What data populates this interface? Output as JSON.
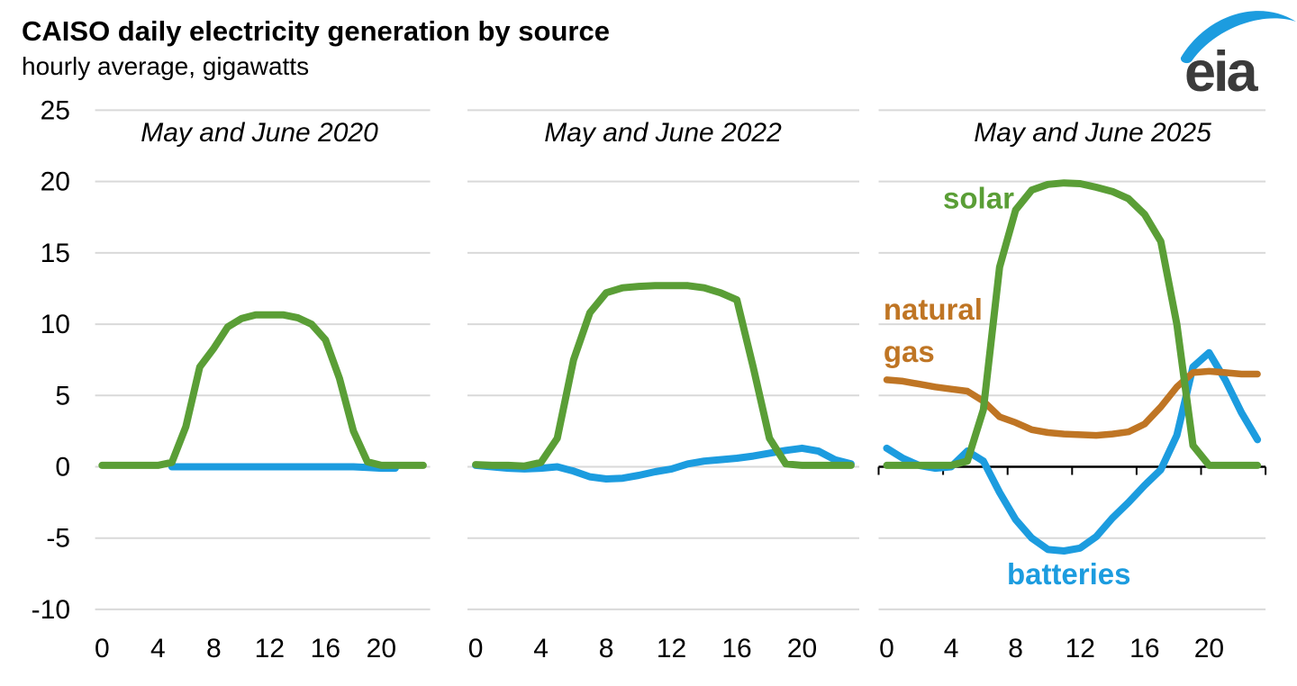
{
  "header": {
    "title": "CAISO daily electricity generation by source",
    "subtitle": "hourly average, gigawatts"
  },
  "logo": {
    "text": "eia"
  },
  "chart_data": {
    "type": "line",
    "title": "CAISO daily electricity generation by source",
    "subtitle": "hourly average, gigawatts",
    "unit": "gigawatts",
    "x_hours_range": [
      0,
      23
    ],
    "x_tick_hours": [
      0,
      4,
      8,
      12,
      16,
      20
    ],
    "y_ticks": [
      25,
      20,
      15,
      10,
      5,
      0,
      -5,
      -10
    ],
    "ylim": [
      -10,
      25
    ],
    "grid": true,
    "legend_position": "inline-labels-third-panel",
    "colors": {
      "solar": "#5a9e36",
      "batteries": "#1c9cdf",
      "natural_gas": "#bf7524",
      "grid": "#d9d9d9",
      "axis": "#000000",
      "text": "#000000",
      "logo_text": "#3b3b3b",
      "logo_swoosh": "#1c9cdf"
    },
    "panels": [
      {
        "label": "May and June 2020",
        "zero_axis": false,
        "series": [
          {
            "name": "batteries",
            "values": [
              null,
              null,
              null,
              null,
              null,
              0,
              0,
              0,
              0,
              0,
              0,
              0,
              0,
              0,
              0,
              0,
              0,
              0,
              0,
              -0.05,
              -0.1,
              -0.1,
              null,
              null
            ]
          },
          {
            "name": "solar",
            "values": [
              0.1,
              0.1,
              0.1,
              0.1,
              0.1,
              0.3,
              2.8,
              7.0,
              8.3,
              9.8,
              10.4,
              10.65,
              10.65,
              10.65,
              10.45,
              10.0,
              8.9,
              6.2,
              2.5,
              0.35,
              0.1,
              0.1,
              0.1,
              0.1
            ]
          }
        ],
        "annotations": []
      },
      {
        "label": "May and June 2022",
        "zero_axis": false,
        "series": [
          {
            "name": "batteries",
            "values": [
              0.1,
              0.0,
              -0.1,
              -0.15,
              -0.1,
              0.0,
              -0.3,
              -0.7,
              -0.85,
              -0.8,
              -0.6,
              -0.35,
              -0.15,
              0.2,
              0.4,
              0.5,
              0.6,
              0.75,
              0.95,
              1.15,
              1.3,
              1.1,
              0.5,
              0.2
            ]
          },
          {
            "name": "solar",
            "values": [
              0.15,
              0.1,
              0.1,
              0.05,
              0.3,
              2.0,
              7.5,
              10.8,
              12.2,
              12.55,
              12.65,
              12.7,
              12.7,
              12.7,
              12.55,
              12.2,
              11.7,
              7.0,
              2.0,
              0.2,
              0.1,
              0.1,
              0.1,
              0.1
            ]
          }
        ],
        "annotations": []
      },
      {
        "label": "May and June 2025",
        "zero_axis": true,
        "series": [
          {
            "name": "batteries",
            "values": [
              1.3,
              0.6,
              0.1,
              -0.1,
              0.0,
              1.1,
              0.4,
              -1.8,
              -3.7,
              -5.0,
              -5.8,
              -5.9,
              -5.7,
              -4.9,
              -3.6,
              -2.5,
              -1.3,
              -0.2,
              2.2,
              7.0,
              8.0,
              6.1,
              3.8,
              1.9
            ]
          },
          {
            "name": "natural_gas",
            "values": [
              6.1,
              6.0,
              5.8,
              5.6,
              5.45,
              5.3,
              4.6,
              3.5,
              3.1,
              2.6,
              2.4,
              2.3,
              2.25,
              2.2,
              2.3,
              2.45,
              3.0,
              4.2,
              5.6,
              6.6,
              6.7,
              6.6,
              6.5,
              6.5
            ]
          },
          {
            "name": "solar",
            "values": [
              0.1,
              0.1,
              0.1,
              0.1,
              0.1,
              0.4,
              4.0,
              14.0,
              18.0,
              19.4,
              19.8,
              19.9,
              19.85,
              19.6,
              19.3,
              18.8,
              17.7,
              15.8,
              10.0,
              1.5,
              0.1,
              0.1,
              0.1,
              0.1
            ]
          }
        ],
        "annotations": [
          {
            "text": "solar",
            "series": "solar",
            "h": 5.7,
            "v": 18.8,
            "align": "middle"
          },
          {
            "lines": [
              "natural",
              "gas"
            ],
            "series": "natural_gas",
            "h": -0.2,
            "v": 11.0,
            "align": "start",
            "line_gap": 2.95
          },
          {
            "text": "batteries",
            "series": "batteries",
            "h": 11.3,
            "v": -7.55,
            "align": "middle"
          }
        ]
      }
    ]
  }
}
